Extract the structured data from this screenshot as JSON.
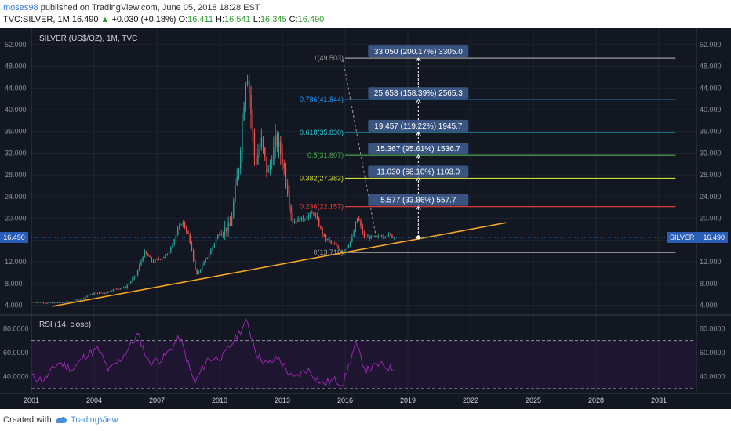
{
  "header": {
    "user": "moses98",
    "published": "published on TradingView.com, June 05, 2018 18:28 EST",
    "symbol_line": "TVC:SILVER, 1M",
    "last": "16.490",
    "change": "+0.030 (+0.18%)",
    "o_label": "O:",
    "o": "16.411",
    "h_label": "H:",
    "h": "16.541",
    "l_label": "L:",
    "l": "16.345",
    "c_label": "C:",
    "c": "16.490"
  },
  "footer": {
    "created_with": "Created with",
    "brand": "TradingView"
  },
  "colors": {
    "bg": "#131722",
    "up": "#26a69a",
    "down": "#ef5350",
    "trend": "#f5a623",
    "rsi": "#9c27b0",
    "axis_text": "#8a8f9c",
    "price_line": "#2196f3"
  },
  "chart_data": {
    "type": "candlestick",
    "title": "SILVER (US$/OZ), 1M, TVC",
    "ylim": [
      2.5,
      55
    ],
    "y_ticks": [
      4,
      8,
      12,
      16,
      20,
      24,
      28,
      32,
      36,
      40,
      44,
      48,
      52
    ],
    "x_ticks": [
      "2001",
      "2004",
      "2007",
      "2010",
      "2013",
      "2016",
      "2019",
      "2022",
      "2025",
      "2028",
      "2031"
    ],
    "last_price": {
      "label": "16.490",
      "tag": "SILVER",
      "value": 16.49
    },
    "anchors": [
      [
        2001.0,
        4.6
      ],
      [
        2002.0,
        4.4
      ],
      [
        2003.0,
        4.7
      ],
      [
        2004.0,
        6.2
      ],
      [
        2004.5,
        6.3
      ],
      [
        2005.0,
        7.0
      ],
      [
        2005.5,
        7.3
      ],
      [
        2006.0,
        9.5
      ],
      [
        2006.4,
        13.8
      ],
      [
        2006.8,
        12.0
      ],
      [
        2007.5,
        13.3
      ],
      [
        2008.2,
        19.5
      ],
      [
        2008.5,
        17.0
      ],
      [
        2008.9,
        9.5
      ],
      [
        2009.5,
        13.5
      ],
      [
        2010.0,
        17.5
      ],
      [
        2010.5,
        18.5
      ],
      [
        2010.9,
        29.0
      ],
      [
        2011.3,
        48.5
      ],
      [
        2011.7,
        30.0
      ],
      [
        2012.0,
        34.0
      ],
      [
        2012.3,
        28.0
      ],
      [
        2012.7,
        34.5
      ],
      [
        2013.0,
        31.0
      ],
      [
        2013.5,
        19.5
      ],
      [
        2014.0,
        20.0
      ],
      [
        2014.5,
        21.0
      ],
      [
        2015.0,
        16.5
      ],
      [
        2015.5,
        15.0
      ],
      [
        2015.9,
        13.8
      ],
      [
        2016.3,
        16.0
      ],
      [
        2016.6,
        20.3
      ],
      [
        2016.9,
        16.5
      ],
      [
        2017.5,
        16.5
      ],
      [
        2018.0,
        17.0
      ],
      [
        2018.4,
        16.49
      ]
    ],
    "trendline": {
      "from": [
        2002.0,
        3.8
      ],
      "to": [
        2023.7,
        19.2
      ]
    },
    "fib_levels": [
      {
        "label": "1(49.503)",
        "value": 49.503,
        "color": "#9e9e9e"
      },
      {
        "label": "0.786(41.844)",
        "value": 41.844,
        "color": "#2196f3"
      },
      {
        "label": "0.618(35.830)",
        "value": 35.83,
        "color": "#26c6da"
      },
      {
        "label": "0.5(31.607)",
        "value": 31.607,
        "color": "#4caf50"
      },
      {
        "label": "0.382(27.383)",
        "value": 27.383,
        "color": "#cddc39"
      },
      {
        "label": "0.236(22.157)",
        "value": 22.157,
        "color": "#f44336"
      },
      {
        "label": "0(13.718)",
        "value": 13.718,
        "color": "#9e9e9e"
      }
    ],
    "fib_from_x": 2016.0,
    "fib_to_x": 2031.8,
    "fib_dashed": {
      "from": [
        2015.9,
        49.2
      ],
      "to": [
        2017.5,
        16.2
      ]
    },
    "measure_boxes": [
      {
        "text": "33.050 (200.17%) 3305.0",
        "value": 49.503
      },
      {
        "text": "25.653 (158.39%) 2565.3",
        "value": 41.844
      },
      {
        "text": "19.457 (119.22%) 1945.7",
        "value": 35.83
      },
      {
        "text": "15.367 (95.61%) 1536.7",
        "value": 31.607
      },
      {
        "text": "11.030 (68.10%) 1103.0",
        "value": 27.383
      },
      {
        "text": "5.577 (33.86%) 557.7",
        "value": 22.157
      }
    ],
    "measure_x": 2019.5,
    "rsi": {
      "label": "RSI (14, close)",
      "ylim": [
        26,
        90
      ],
      "y_ticks": [
        40,
        60,
        80
      ],
      "bands": [
        70,
        30
      ],
      "anchors": [
        [
          2001.0,
          40
        ],
        [
          2001.6,
          37
        ],
        [
          2002.3,
          52
        ],
        [
          2003.0,
          46
        ],
        [
          2003.6,
          58
        ],
        [
          2004.2,
          63
        ],
        [
          2004.7,
          45
        ],
        [
          2005.3,
          55
        ],
        [
          2006.1,
          75
        ],
        [
          2006.6,
          52
        ],
        [
          2007.3,
          55
        ],
        [
          2008.1,
          73
        ],
        [
          2008.8,
          34
        ],
        [
          2009.4,
          54
        ],
        [
          2010.2,
          57
        ],
        [
          2010.9,
          76
        ],
        [
          2011.3,
          86
        ],
        [
          2011.8,
          58
        ],
        [
          2012.3,
          50
        ],
        [
          2012.8,
          56
        ],
        [
          2013.5,
          38
        ],
        [
          2014.2,
          46
        ],
        [
          2014.9,
          34
        ],
        [
          2015.5,
          37
        ],
        [
          2015.9,
          34
        ],
        [
          2016.5,
          67
        ],
        [
          2017.0,
          45
        ],
        [
          2017.6,
          50
        ],
        [
          2018.4,
          46
        ]
      ]
    }
  }
}
